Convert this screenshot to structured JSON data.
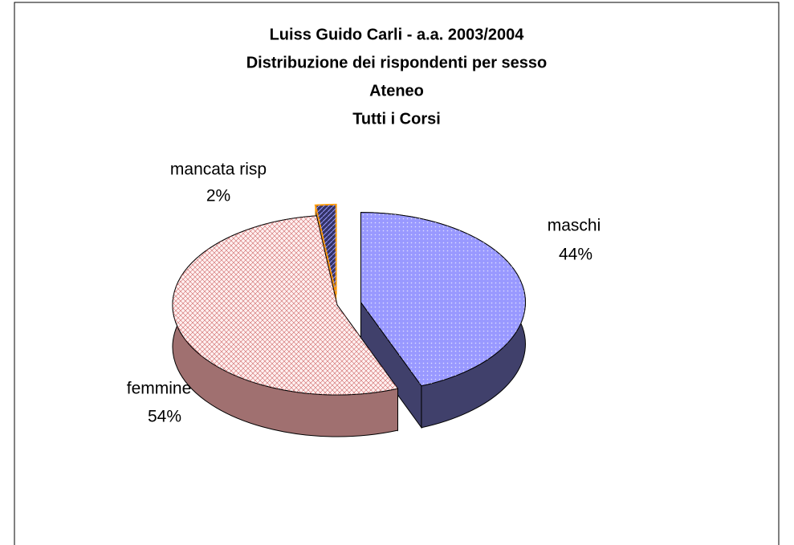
{
  "chart_data": {
    "type": "pie",
    "title": [
      "Luiss Guido Carli - a.a. 2003/2004",
      "Distribuzione dei rispondenti per sesso",
      "Ateneo",
      "Tutti i Corsi"
    ],
    "categories": [
      "maschi",
      "femmine",
      "mancata risp"
    ],
    "values": [
      44,
      54,
      2
    ],
    "value_labels": [
      "44%",
      "54%",
      "2%"
    ],
    "colors": [
      "#9999ff",
      "#fff0f0",
      "#333366"
    ]
  }
}
